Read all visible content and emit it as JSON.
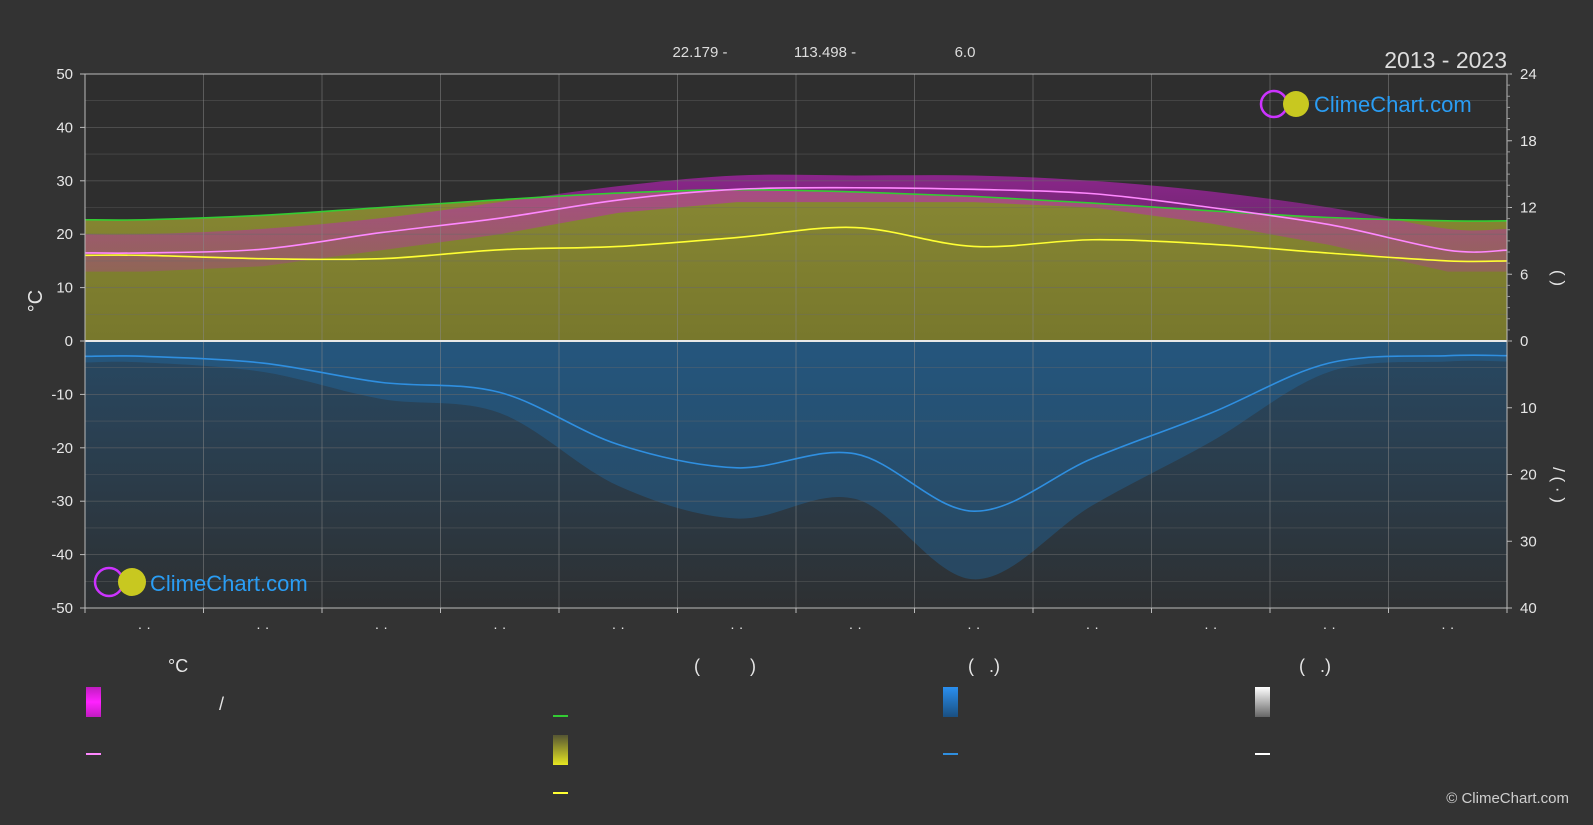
{
  "header": {
    "coord_lat": "22.179 -",
    "coord_lon": "113.498 -",
    "coord_alt": "6.0",
    "period": "2013 - 2023"
  },
  "brand": {
    "name": "ClimeChart.com",
    "copyright": "© ClimeChart.com"
  },
  "chart_data": {
    "type": "line",
    "left_axis": {
      "label": "°C",
      "range": [
        -50,
        50
      ],
      "ticks": [
        "50",
        "40",
        "30",
        "20",
        "10",
        "0",
        "-10",
        "-20",
        "-30",
        "-40",
        "-50"
      ]
    },
    "right_axis_top": {
      "range": [
        0,
        24
      ],
      "ticks": [
        "24",
        "18",
        "12",
        "6",
        "0"
      ],
      "label_glyphs": "( )"
    },
    "right_axis_bottom": {
      "range": [
        0,
        40
      ],
      "ticks": [
        "10",
        "20",
        "30",
        "40"
      ],
      "label_glyphs": "/ ( · )"
    },
    "month_tick_labels": [
      "· ·",
      "· ·",
      "· ·",
      "· ·",
      "· ·",
      "· ·",
      "· ·",
      "· ·",
      "· ·",
      "· ·",
      "· ·",
      "· ·"
    ],
    "months_x": [
      0.5,
      1.5,
      2.5,
      3.5,
      4.5,
      5.5,
      6.5,
      7.5,
      8.5,
      9.5,
      10.5,
      11.5
    ],
    "series": [
      {
        "key": "daylight",
        "color": "#33cc33",
        "axis": "right_top",
        "values": [
          10.9,
          11.3,
          12.0,
          12.7,
          13.3,
          13.6,
          13.4,
          13.0,
          12.4,
          11.7,
          11.1,
          10.8
        ]
      },
      {
        "key": "mean_temp",
        "color": "#ff88ff",
        "axis": "left",
        "values": [
          16.5,
          17.2,
          20.3,
          23.0,
          26.4,
          28.4,
          28.7,
          28.4,
          27.6,
          25.0,
          21.8,
          17.0
        ]
      },
      {
        "key": "sunshine",
        "color": "#ffff33",
        "axis": "right_top",
        "values": [
          7.7,
          7.4,
          7.4,
          8.2,
          8.5,
          9.3,
          10.2,
          8.5,
          9.1,
          8.7,
          7.9,
          7.2
        ]
      },
      {
        "key": "precipitation",
        "color": "#2f8fe0",
        "axis": "right_bottom",
        "values": [
          2.3,
          3.3,
          6.2,
          7.7,
          15.5,
          19.0,
          16.9,
          25.5,
          17.6,
          10.8,
          3.3,
          2.2
        ]
      }
    ],
    "temp_range_band": {
      "color": "#e020e0",
      "max": [
        20,
        21,
        23,
        26,
        29,
        31,
        31,
        31,
        30,
        28,
        25,
        21
      ],
      "min": [
        13,
        14,
        17,
        20,
        24,
        26,
        26,
        26,
        25,
        22,
        18,
        13
      ]
    }
  },
  "legend": {
    "col1_head": "°C",
    "col1_slash": "/",
    "col2_head": "(          )",
    "col3_head": "(   .)",
    "col4_head": "(   .)",
    "colors": {
      "temp_band": "#dd22dd",
      "temp_line": "#ff88ff",
      "daylight": "#33cc33",
      "sunshine_band": "#dede22",
      "sunshine_line": "#ffff33",
      "rain_band": "#1f7fd8",
      "rain_line": "#2f8fe0",
      "snow_band": "#ffffff",
      "snow_line": "#ffffff"
    }
  }
}
